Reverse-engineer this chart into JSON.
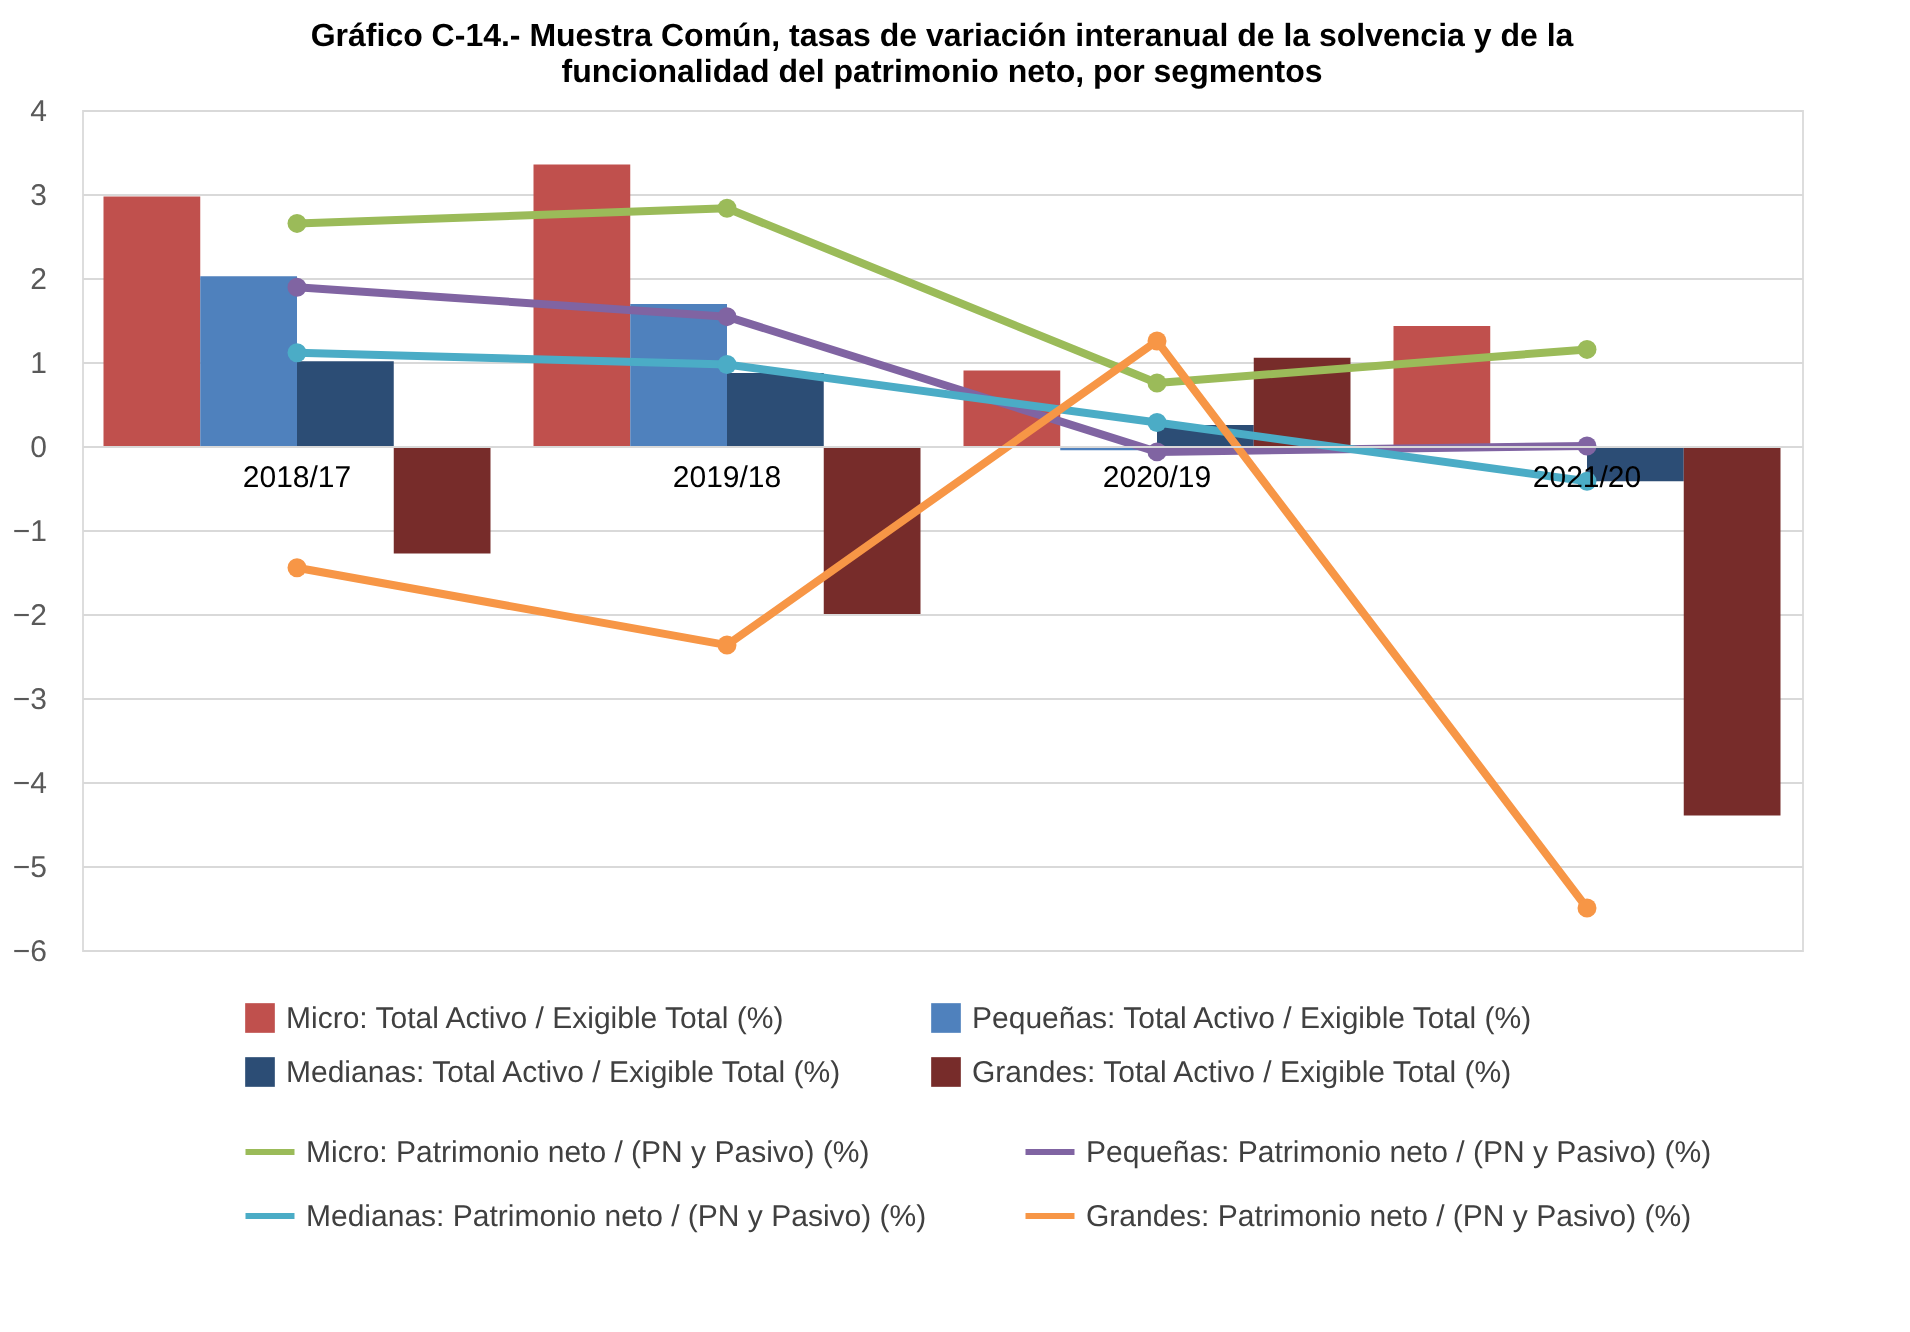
{
  "chart_data": {
    "type": "bar",
    "title": "Gráfico C-14.- Muestra Común, tasas de variación  interanual de la solvencia y de la\nfuncionalidad  del patrimonio neto, por segmentos",
    "categories": [
      "2018/17",
      "2019/18",
      "2020/19",
      "2021/20"
    ],
    "series": [
      {
        "name": "Micro: Total Activo / Exigible Total (%)",
        "color": "#c0504d",
        "values": [
          2.97,
          3.35,
          0.9,
          1.43
        ]
      },
      {
        "name": "Pequeñas: Total Activo / Exigible Total (%)",
        "color": "#4f81bd",
        "values": [
          2.02,
          1.69,
          -0.05,
          0.0
        ]
      },
      {
        "name": "Medianas: Total Activo / Exigible Total (%)",
        "color": "#2c4d75",
        "values": [
          1.01,
          0.87,
          0.25,
          -0.42
        ]
      },
      {
        "name": "Grandes: Total Activo / Exigible Total (%)",
        "color": "#772c2a",
        "values": [
          -1.28,
          -2.0,
          1.05,
          -4.4
        ]
      },
      {
        "name": "Micro: Patrimonio neto / (PN y Pasivo) (%)",
        "type": "line",
        "color": "#9bbb59",
        "values": [
          2.65,
          2.83,
          0.75,
          1.15
        ]
      },
      {
        "name": "Pequeñas: Patrimonio neto / (PN y Pasivo) (%)",
        "type": "line",
        "color": "#8064a2",
        "values": [
          1.89,
          1.54,
          -0.07,
          0.0
        ]
      },
      {
        "name": "Medianas: Patrimonio neto / (PN y Pasivo) (%)",
        "type": "line",
        "color": "#4bacc6",
        "values": [
          1.11,
          0.97,
          0.28,
          -0.42
        ]
      },
      {
        "name": "Grandes: Patrimonio neto / (PN y Pasivo) (%)",
        "type": "line",
        "color": "#f79646",
        "values": [
          -1.45,
          -2.37,
          1.25,
          -5.5
        ]
      }
    ],
    "ylim": [
      -6,
      4
    ],
    "yticks": [
      -6,
      -5,
      -4,
      -3,
      -2,
      -1,
      0,
      1,
      2,
      3,
      4
    ],
    "grid": "y",
    "legend": "bottom",
    "marker": "circle",
    "line_style": "solid"
  }
}
